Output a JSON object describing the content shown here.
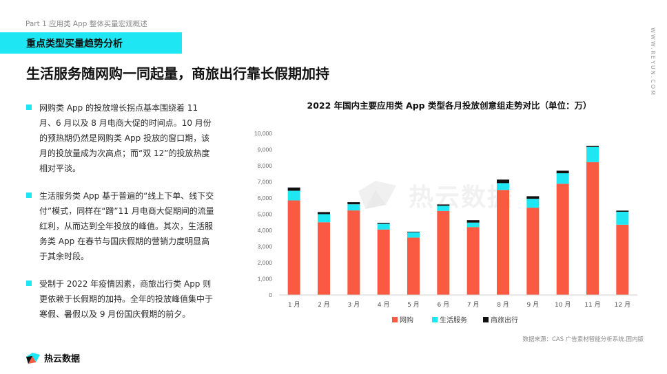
{
  "header": {
    "part_label": "Part 1 应用类 App 整体买量宏观概述",
    "section_title": "重点类型买量趋势分析",
    "side_url": "WWW.REYUN.COM"
  },
  "headline": "生活服务随网购一同起量，商旅出行靠长假期加持",
  "bullets": [
    "网购类 App 的投放增长拐点基本围绕着 11 月、6 月以及 8 月电商大促的时间点。10 月份的预热期仍然是网购类 App 投放的窗口期，该月的投放量成为次高点；而“双 12”的投放热度相对平淡。",
    "生活服务类 App 基于普遍的“线上下单、线下交付”模式，同样在“蹭”11 月电商大促期间的流量红利，从而达到全年投放的峰值。其次，生活服务类 App 在春节与国庆假期的营销力度明显高于其余时段。",
    "受制于 2022 年疫情因素，商旅出行类 App 则更依赖于长假期的加持。全年的投放峰值集中于寒假、暑假以及 9 月份国庆假期的前夕。"
  ],
  "chart_data": {
    "type": "bar",
    "stacked": true,
    "title": "2022 年国内主要应用类 App 类型各月投放创意组走势对比（单位：万）",
    "categories": [
      "1 月",
      "2 月",
      "3 月",
      "4 月",
      "5 月",
      "6 月",
      "7 月",
      "8 月",
      "9 月",
      "10 月",
      "11 月",
      "12 月"
    ],
    "series": [
      {
        "name": "网购",
        "color": "#fb5a42",
        "values": [
          5850,
          4500,
          5230,
          4050,
          3550,
          5200,
          4200,
          6500,
          5400,
          6880,
          8220,
          4350
        ]
      },
      {
        "name": "生活服务",
        "color": "#1ee6f2",
        "values": [
          600,
          500,
          380,
          350,
          320,
          320,
          280,
          420,
          550,
          650,
          940,
          800
        ]
      },
      {
        "name": "商旅出行",
        "color": "#111111",
        "values": [
          200,
          130,
          130,
          60,
          40,
          80,
          150,
          220,
          160,
          160,
          70,
          70
        ]
      }
    ],
    "ylim": [
      0,
      10000
    ],
    "yticks": [
      "0",
      "1,000",
      "2,000",
      "3,000",
      "4,000",
      "5,000",
      "6,000",
      "7,000",
      "8,000",
      "9,000",
      "10,000"
    ],
    "legend_position": "bottom-center",
    "grid": false
  },
  "source": "数据来源：CAS 广告素材智能分析系统.国内版",
  "brand": {
    "name": "热云数据",
    "watermark": "热云数据"
  }
}
